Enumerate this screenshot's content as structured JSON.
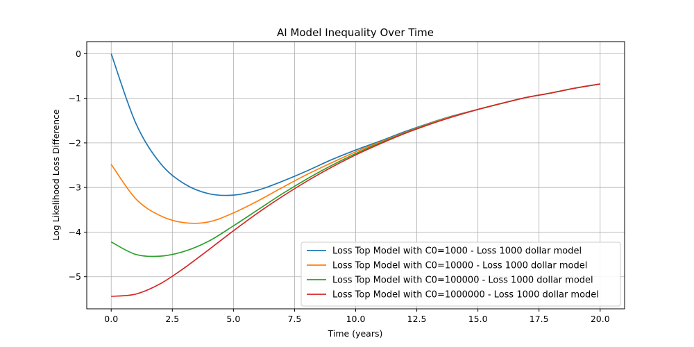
{
  "chart_data": {
    "type": "line",
    "title": "AI Model Inequality Over Time",
    "xlabel": "Time (years)",
    "ylabel": "Log Likelihood Loss Difference",
    "xlim": [
      -1.0,
      21.0
    ],
    "ylim": [
      -5.72,
      0.27
    ],
    "x_ticks": [
      0.0,
      2.5,
      5.0,
      7.5,
      10.0,
      12.5,
      15.0,
      17.5,
      20.0
    ],
    "x_tick_labels": [
      "0.0",
      "2.5",
      "5.0",
      "7.5",
      "10.0",
      "12.5",
      "15.0",
      "17.5",
      "20.0"
    ],
    "y_ticks": [
      0,
      -1,
      -2,
      -3,
      -4,
      -5
    ],
    "y_tick_labels": [
      "0",
      "−1",
      "−2",
      "−3",
      "−4",
      "−5"
    ],
    "grid": true,
    "legend_position": "bottom-right",
    "x": [
      0,
      1,
      2,
      3,
      4,
      5,
      6,
      7,
      8,
      9,
      10,
      11,
      12,
      13,
      14,
      15,
      16,
      17,
      18,
      19,
      20
    ],
    "series": [
      {
        "name": "Loss Top Model with C0=1000 - Loss 1000 dollar model",
        "color": "#1f77b4",
        "values": [
          0.0,
          -1.55,
          -2.45,
          -2.92,
          -3.14,
          -3.17,
          -3.06,
          -2.86,
          -2.63,
          -2.38,
          -2.16,
          -1.96,
          -1.75,
          -1.56,
          -1.39,
          -1.25,
          -1.11,
          -0.98,
          -0.88,
          -0.77,
          -0.68
        ]
      },
      {
        "name": "Loss Top Model with C0=10000 - Loss 1000 dollar model",
        "color": "#ff7f0e",
        "values": [
          -2.48,
          -3.25,
          -3.63,
          -3.79,
          -3.77,
          -3.57,
          -3.3,
          -3.0,
          -2.71,
          -2.45,
          -2.2,
          -1.98,
          -1.77,
          -1.57,
          -1.4,
          -1.25,
          -1.11,
          -0.98,
          -0.88,
          -0.77,
          -0.68
        ]
      },
      {
        "name": "Loss Top Model with C0=100000 - Loss 1000 dollar model",
        "color": "#2ca02c",
        "values": [
          -4.22,
          -4.5,
          -4.54,
          -4.43,
          -4.2,
          -3.86,
          -3.5,
          -3.14,
          -2.81,
          -2.51,
          -2.24,
          -2.0,
          -1.78,
          -1.58,
          -1.41,
          -1.25,
          -1.11,
          -0.98,
          -0.88,
          -0.77,
          -0.68
        ]
      },
      {
        "name": "Loss Top Model with C0=1000000 - Loss 1000 dollar model",
        "color": "#d62728",
        "values": [
          -5.44,
          -5.39,
          -5.16,
          -4.8,
          -4.39,
          -3.97,
          -3.57,
          -3.2,
          -2.86,
          -2.55,
          -2.27,
          -2.02,
          -1.79,
          -1.59,
          -1.41,
          -1.25,
          -1.11,
          -0.98,
          -0.88,
          -0.77,
          -0.68
        ]
      }
    ]
  }
}
